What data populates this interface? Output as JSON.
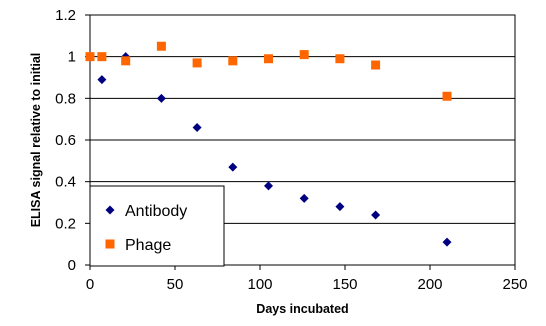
{
  "chart_data": {
    "type": "scatter",
    "title": "",
    "xlabel": "Days incubated",
    "ylabel": "ELISA signal relative to initial",
    "xlim": [
      0,
      250
    ],
    "ylim": [
      0,
      1.2
    ],
    "x_ticks": [
      0,
      50,
      100,
      150,
      200,
      250
    ],
    "y_ticks": [
      0,
      0.2,
      0.4,
      0.6,
      0.8,
      1,
      1.2
    ],
    "x_tick_labels": [
      "0",
      "50",
      "100",
      "150",
      "200",
      "250"
    ],
    "y_tick_labels": [
      "0",
      "0.2",
      "0.4",
      "0.6",
      "0.8",
      "1",
      "1.2"
    ],
    "grid": "horizontal",
    "legend_position": "bottom-left",
    "series": [
      {
        "name": "Antibody",
        "marker": "diamond",
        "color": "#000080",
        "x": [
          7,
          21,
          42,
          63,
          84,
          105,
          126,
          147,
          168,
          210
        ],
        "y": [
          0.89,
          1.0,
          0.8,
          0.66,
          0.47,
          0.38,
          0.32,
          0.28,
          0.24,
          0.11
        ]
      },
      {
        "name": "Phage",
        "marker": "square",
        "color": "#FF6600",
        "x": [
          0,
          7,
          21,
          42,
          63,
          84,
          105,
          126,
          147,
          168,
          210
        ],
        "y": [
          1.0,
          1.0,
          0.98,
          1.05,
          0.97,
          0.98,
          0.99,
          1.01,
          0.99,
          0.96,
          0.81
        ]
      }
    ]
  }
}
